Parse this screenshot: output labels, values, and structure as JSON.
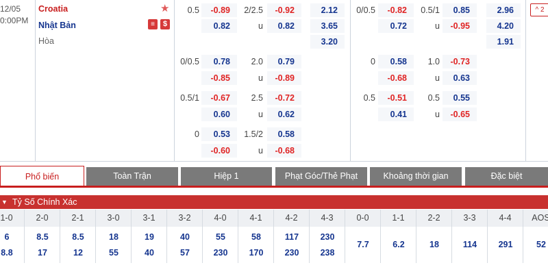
{
  "match": {
    "date": "12/05",
    "time": "0:00PM",
    "home": "Croatia",
    "away": "Nhật Bản",
    "draw": "Hòa",
    "badge_s1": "图",
    "badge_s2": "$"
  },
  "main": {
    "ft_handicap": [
      {
        "line": "0.5",
        "top": "-0.89",
        "bot": "0.82"
      },
      {
        "line": "0/0.5",
        "top": "0.78",
        "bot": "-0.85"
      },
      {
        "line": "0.5/1",
        "top": "-0.67",
        "bot": "0.60"
      },
      {
        "line": "0",
        "top": "0.53",
        "bot": "-0.60"
      }
    ],
    "ft_ou": [
      {
        "line": "2/2.5",
        "u": "u",
        "top": "-0.92",
        "bot": "0.82"
      },
      {
        "line": "2.0",
        "u": "u",
        "top": "0.79",
        "bot": "-0.89"
      },
      {
        "line": "2.5",
        "u": "u",
        "top": "-0.72",
        "bot": "0.62"
      },
      {
        "line": "1.5/2",
        "u": "u",
        "top": "0.58",
        "bot": "-0.68"
      }
    ],
    "ft_1x2": [
      "2.12",
      "3.65",
      "3.20"
    ],
    "ht_handicap": [
      {
        "line": "0/0.5",
        "top": "-0.82",
        "bot": "0.72"
      },
      {
        "line": "0",
        "top": "0.58",
        "bot": "-0.68"
      },
      {
        "line": "0.5",
        "top": "-0.51",
        "bot": "0.41"
      }
    ],
    "ht_ou": [
      {
        "line": "0.5/1",
        "u": "u",
        "top": "0.85",
        "bot": "-0.95"
      },
      {
        "line": "1.0",
        "u": "u",
        "top": "-0.73",
        "bot": "0.63"
      },
      {
        "line": "0.5",
        "u": "u",
        "top": "0.55",
        "bot": "-0.65"
      }
    ],
    "ht_1x2": [
      "2.96",
      "4.20",
      "1.91"
    ],
    "more_label": "^ 2"
  },
  "tabs": [
    "Phổ biến",
    "Toàn Trận",
    "Hiệp 1",
    "Phạt Góc/Thẻ Phạt",
    "Khoảng thời gian",
    "Đặc biệt"
  ],
  "section_title": "Tỷ Số Chính Xác",
  "correct_score": {
    "headers": [
      "1-0",
      "2-0",
      "2-1",
      "3-0",
      "3-1",
      "3-2",
      "4-0",
      "4-1",
      "4-2",
      "4-3",
      "0-0",
      "1-1",
      "2-2",
      "3-3",
      "4-4",
      "AOS"
    ],
    "top": [
      "6",
      "8.5",
      "8.5",
      "18",
      "19",
      "40",
      "55",
      "58",
      "117",
      "230",
      "7.7",
      "6.2",
      "18",
      "114",
      "291",
      "52"
    ],
    "bot": [
      "8.8",
      "17",
      "12",
      "55",
      "40",
      "57",
      "230",
      "170",
      "230",
      "238"
    ]
  }
}
